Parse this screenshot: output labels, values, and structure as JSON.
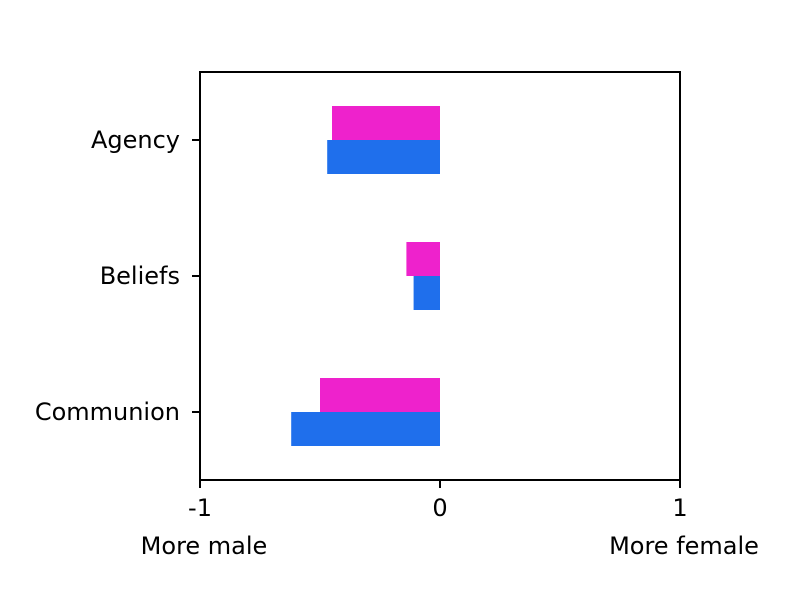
{
  "chart_data": {
    "type": "bar",
    "orientation": "horizontal",
    "categories": [
      "Agency",
      "Beliefs",
      "Communion"
    ],
    "series": [
      {
        "values": [
          -0.45,
          -0.14,
          -0.5
        ],
        "color": "#ee22cc"
      },
      {
        "values": [
          -0.47,
          -0.11,
          -0.62
        ],
        "color": "#1f6fec"
      }
    ],
    "xlim": [
      -1,
      1
    ],
    "xticks": [
      -1,
      0,
      1
    ],
    "xtick_labels": [
      "-1",
      "0",
      "1"
    ],
    "xlabel_left": "More male",
    "xlabel_right": "More female",
    "legend": "none",
    "grid": false
  }
}
